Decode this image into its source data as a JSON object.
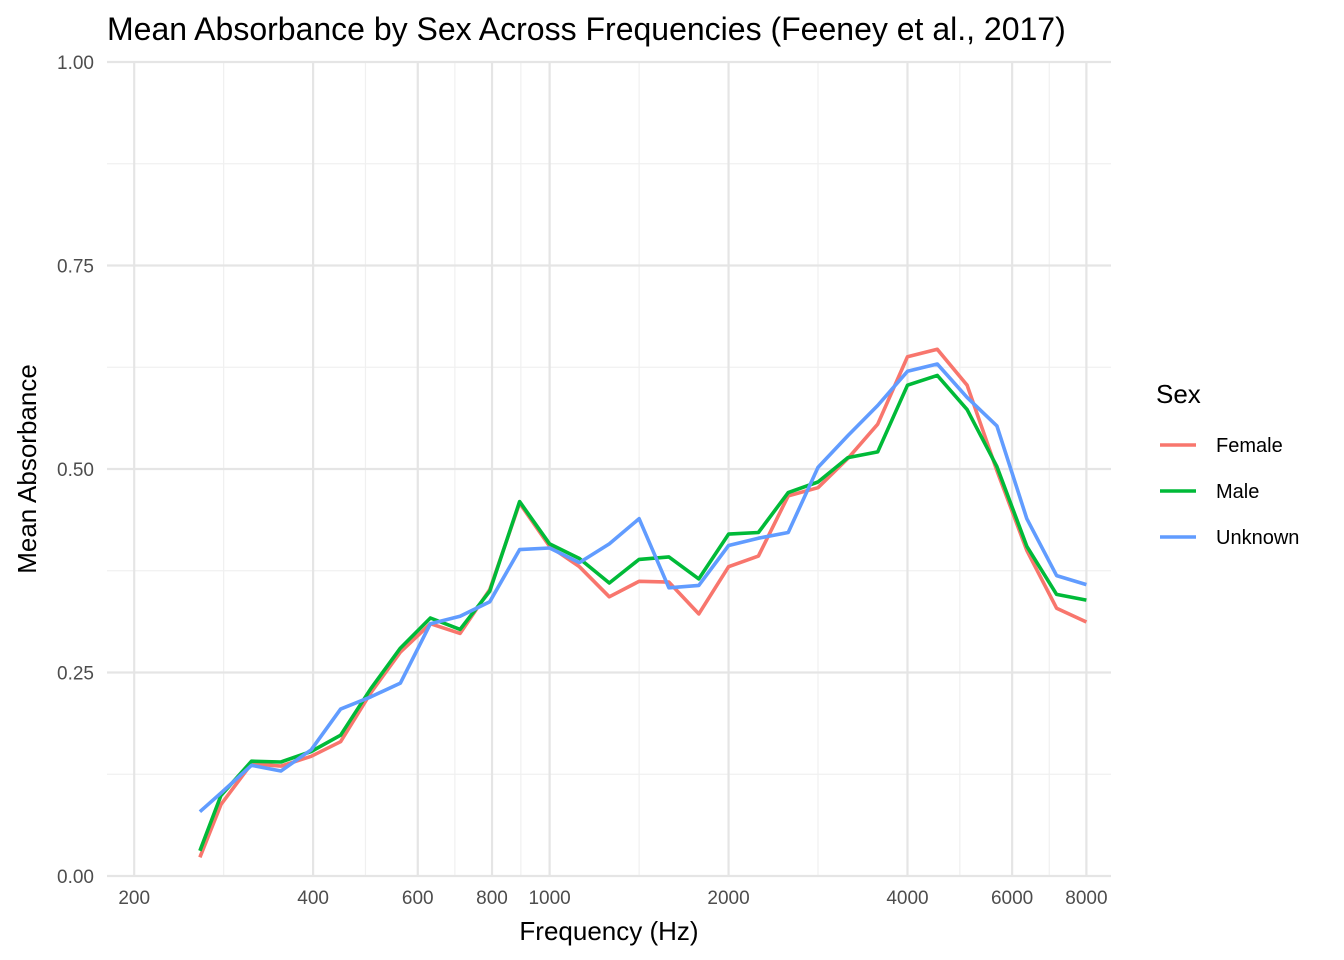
{
  "chart_data": {
    "type": "line",
    "title": "Mean Absorbance by Sex Across Frequencies (Feeney et al., 2017)",
    "xlabel": "Frequency (Hz)",
    "ylabel": "Mean Absorbance",
    "x_scale": "log10",
    "xlim": [
      180,
      8800
    ],
    "ylim": [
      0,
      1
    ],
    "x_ticks": [
      200,
      400,
      600,
      800,
      1000,
      2000,
      4000,
      6000,
      8000
    ],
    "x_tick_labels": [
      "200",
      "400",
      "600",
      "800",
      "1000",
      "2000",
      "4000",
      "6000",
      "8000"
    ],
    "y_ticks": [
      0,
      0.25,
      0.5,
      0.75,
      1.0
    ],
    "y_tick_labels": [
      "0.00",
      "0.25",
      "0.50",
      "0.75",
      "1.00"
    ],
    "grid": true,
    "legend_title": "Sex",
    "legend_position": "right",
    "x": [
      258,
      280,
      315,
      353,
      397,
      445,
      500,
      561,
      630,
      707,
      793,
      890,
      1000,
      1122,
      1260,
      1414,
      1587,
      1782,
      2000,
      2245,
      2520,
      2828,
      3175,
      3564,
      4000,
      4490,
      5040,
      5657,
      6350,
      7127,
      8000
    ],
    "series": [
      {
        "name": "Female",
        "color": "#F8766D",
        "values": [
          0.023,
          0.088,
          0.138,
          0.135,
          0.147,
          0.165,
          0.225,
          0.275,
          0.31,
          0.298,
          0.352,
          0.458,
          0.405,
          0.38,
          0.343,
          0.362,
          0.361,
          0.322,
          0.38,
          0.393,
          0.467,
          0.477,
          0.513,
          0.555,
          0.638,
          0.647,
          0.603,
          0.498,
          0.4,
          0.329,
          0.312
        ]
      },
      {
        "name": "Male",
        "color": "#00BA38",
        "values": [
          0.031,
          0.099,
          0.141,
          0.14,
          0.153,
          0.173,
          0.23,
          0.28,
          0.317,
          0.303,
          0.35,
          0.46,
          0.408,
          0.39,
          0.36,
          0.389,
          0.392,
          0.365,
          0.42,
          0.422,
          0.471,
          0.484,
          0.514,
          0.521,
          0.603,
          0.615,
          0.573,
          0.503,
          0.405,
          0.346,
          0.339
        ]
      },
      {
        "name": "Unknown",
        "color": "#619CFF",
        "values": [
          0.079,
          0.102,
          0.136,
          0.129,
          0.155,
          0.205,
          0.22,
          0.237,
          0.31,
          0.319,
          0.337,
          0.401,
          0.403,
          0.385,
          0.408,
          0.439,
          0.354,
          0.357,
          0.406,
          0.415,
          0.422,
          0.502,
          0.541,
          0.578,
          0.62,
          0.629,
          0.588,
          0.553,
          0.439,
          0.369,
          0.358
        ]
      }
    ]
  }
}
